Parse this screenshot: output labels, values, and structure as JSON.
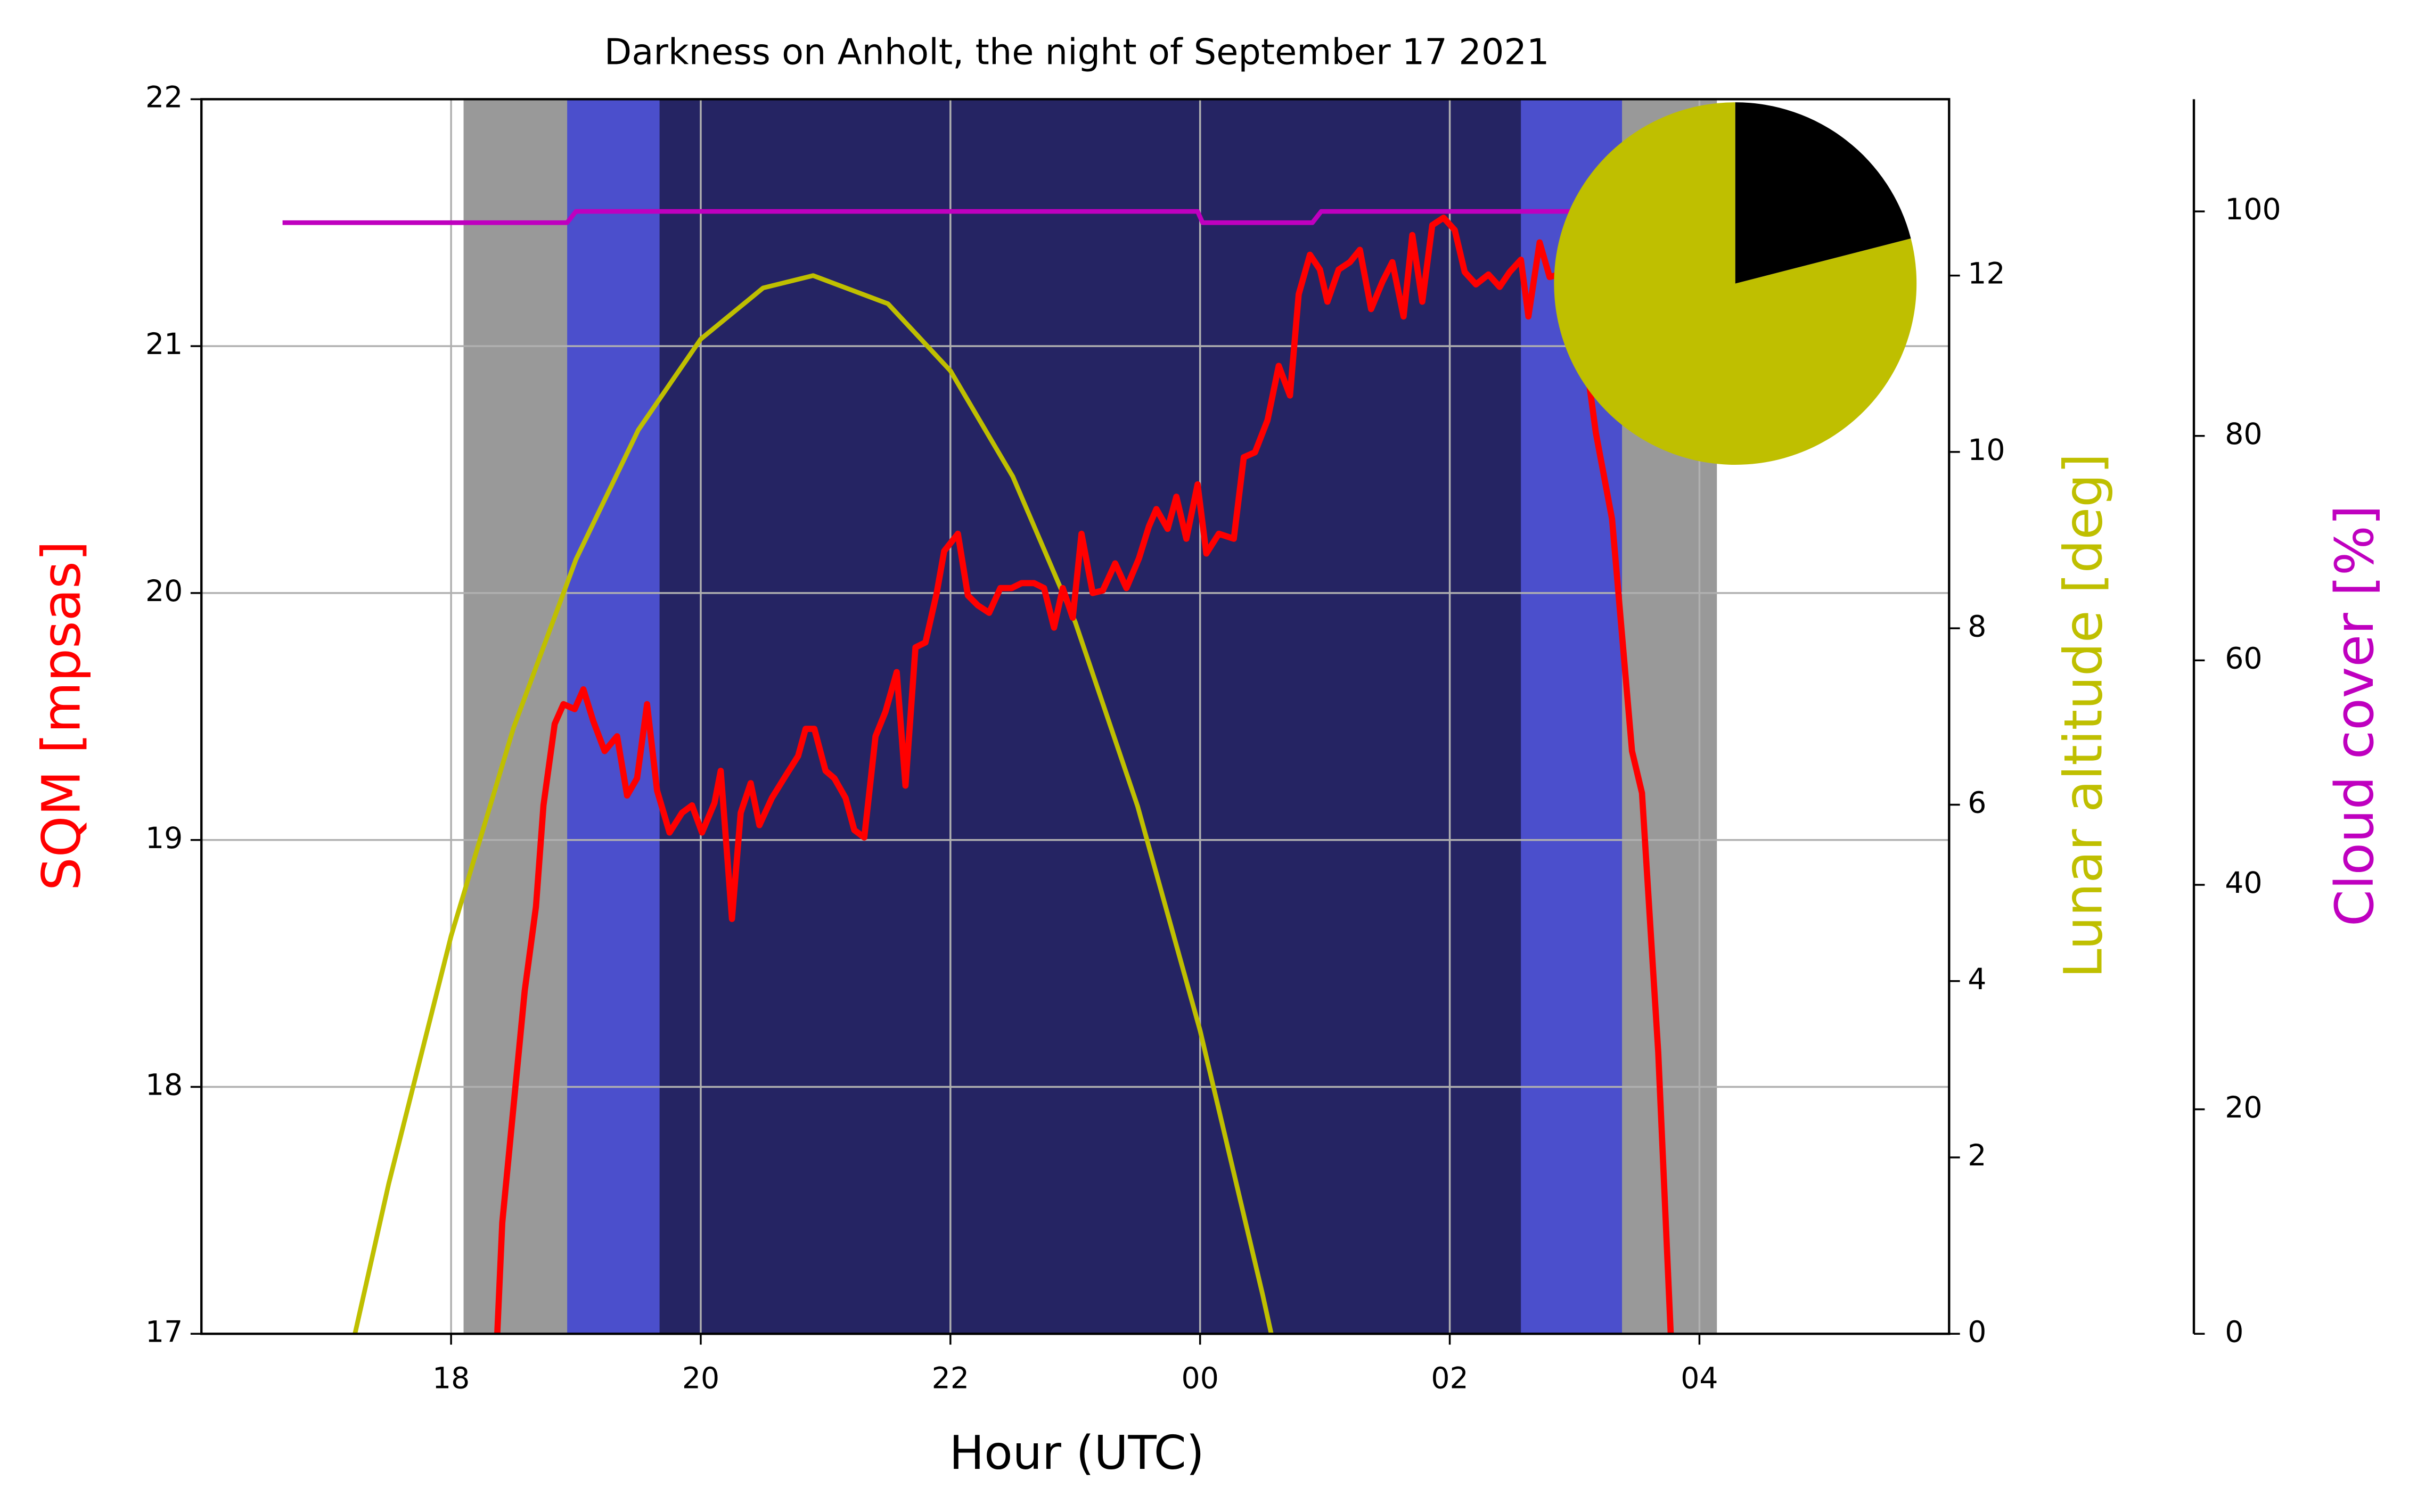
{
  "chart_data": [
    {
      "type": "line",
      "title": "Darkness on Anholt, the night of September 17 2021",
      "xlabel": "Hour (UTC)",
      "ylabel": "SQM [mpsas]",
      "ylabel_color": "#ff0000",
      "y2label": "Lunar altitude [deg]",
      "y2label_color": "#bfbf00",
      "y3label": "Cloud cover [%]",
      "y3label_color": "#bf00bf",
      "xlim": [
        16,
        30
      ],
      "xticks": [
        18,
        20,
        22,
        {
          "value": 24,
          "label": "00"
        },
        {
          "value": 26,
          "label": "02"
        },
        {
          "value": 28,
          "label": "04"
        }
      ],
      "ylim": [
        17,
        22
      ],
      "yticks": [
        17,
        18,
        19,
        20,
        21,
        22
      ],
      "y2lim": [
        0,
        14
      ],
      "y2ticks": [
        0,
        2,
        4,
        6,
        8,
        10,
        12
      ],
      "y3lim": [
        0,
        110
      ],
      "y3ticks": [
        0,
        20,
        40,
        60,
        80,
        100
      ],
      "grid": true,
      "shading": [
        {
          "start": 18.1,
          "end": 28.14,
          "color": "#999999"
        },
        {
          "start": 18.93,
          "end": 27.38,
          "color": "#4b4fcc"
        },
        {
          "start": 19.67,
          "end": 26.57,
          "color": "#252463"
        }
      ],
      "series": [
        {
          "color": "#bfbf00",
          "axis": "y2",
          "x": [
            17.23,
            17.5,
            18.0,
            18.5,
            19.0,
            19.5,
            20.0,
            20.5,
            20.9,
            21.5,
            22.0,
            22.5,
            23.0,
            23.5,
            24.0,
            24.5,
            24.57
          ],
          "values": [
            0,
            1.7,
            4.51,
            6.87,
            8.78,
            10.25,
            11.28,
            11.86,
            12,
            11.68,
            10.92,
            9.72,
            8.07,
            5.98,
            3.44,
            0.45,
            0
          ]
        },
        {
          "color": "#bf00bf",
          "axis": "y3",
          "x": [
            16.65,
            18.93,
            19.0,
            23.98,
            24.02,
            24.9,
            24.97,
            28.0
          ],
          "values": [
            99,
            99,
            100,
            100,
            99,
            99,
            100,
            100
          ]
        },
        {
          "color": "#ff0000",
          "axis": "y",
          "x": [
            18.37,
            18.41,
            18.59,
            18.68,
            18.74,
            18.83,
            18.9,
            18.99,
            19.06,
            19.14,
            19.23,
            19.33,
            19.41,
            19.49,
            19.57,
            19.65,
            19.75,
            19.85,
            19.93,
            20.01,
            20.11,
            20.16,
            20.25,
            20.32,
            20.4,
            20.47,
            20.57,
            20.68,
            20.78,
            20.84,
            20.91,
            21.0,
            21.07,
            21.16,
            21.23,
            21.31,
            21.4,
            21.48,
            21.57,
            21.64,
            21.72,
            21.8,
            21.89,
            21.95,
            22.06,
            22.14,
            22.22,
            22.31,
            22.4,
            22.49,
            22.57,
            22.67,
            22.75,
            22.83,
            22.9,
            22.98,
            23.05,
            23.14,
            23.22,
            23.32,
            23.41,
            23.51,
            23.59,
            23.65,
            23.74,
            23.81,
            23.89,
            23.98,
            24.05,
            24.15,
            24.27,
            24.35,
            24.44,
            24.54,
            24.63,
            24.72,
            24.79,
            24.88,
            24.96,
            25.02,
            25.11,
            25.2,
            25.28,
            25.37,
            25.46,
            25.54,
            25.63,
            25.7,
            25.78,
            25.86,
            25.95,
            26.04,
            26.12,
            26.21,
            26.31,
            26.4,
            26.48,
            26.57,
            26.63,
            26.72,
            26.8,
            26.95,
            27.05,
            27.17,
            27.3,
            27.38,
            27.46,
            27.54,
            27.67,
            27.77
          ],
          "values": [
            17.0,
            17.45,
            18.39,
            18.73,
            19.14,
            19.47,
            19.55,
            19.53,
            19.61,
            19.48,
            19.36,
            19.42,
            19.18,
            19.25,
            19.55,
            19.2,
            19.03,
            19.11,
            19.14,
            19.03,
            19.15,
            19.28,
            18.68,
            19.11,
            19.23,
            19.06,
            19.17,
            19.26,
            19.34,
            19.45,
            19.45,
            19.28,
            19.25,
            19.17,
            19.04,
            19.01,
            19.42,
            19.52,
            19.68,
            19.22,
            19.78,
            19.8,
            20.0,
            20.17,
            20.24,
            19.99,
            19.95,
            19.92,
            20.02,
            20.02,
            20.04,
            20.04,
            20.02,
            19.86,
            20.02,
            19.9,
            20.24,
            20.0,
            20.01,
            20.12,
            20.02,
            20.14,
            20.27,
            20.34,
            20.26,
            20.39,
            20.22,
            20.44,
            20.16,
            20.24,
            20.22,
            20.55,
            20.57,
            20.7,
            20.92,
            20.8,
            21.21,
            21.37,
            21.31,
            21.18,
            21.31,
            21.34,
            21.39,
            21.15,
            21.26,
            21.34,
            21.12,
            21.45,
            21.18,
            21.49,
            21.52,
            21.47,
            21.3,
            21.25,
            21.29,
            21.24,
            21.3,
            21.35,
            21.12,
            21.42,
            21.28,
            21.3,
            21.1,
            20.65,
            20.3,
            19.83,
            19.36,
            19.19,
            18.14,
            17.0
          ]
        }
      ]
    },
    {
      "type": "pie",
      "values": [
        79,
        21
      ],
      "colors": [
        "#bfbf00",
        "#000000"
      ]
    }
  ]
}
